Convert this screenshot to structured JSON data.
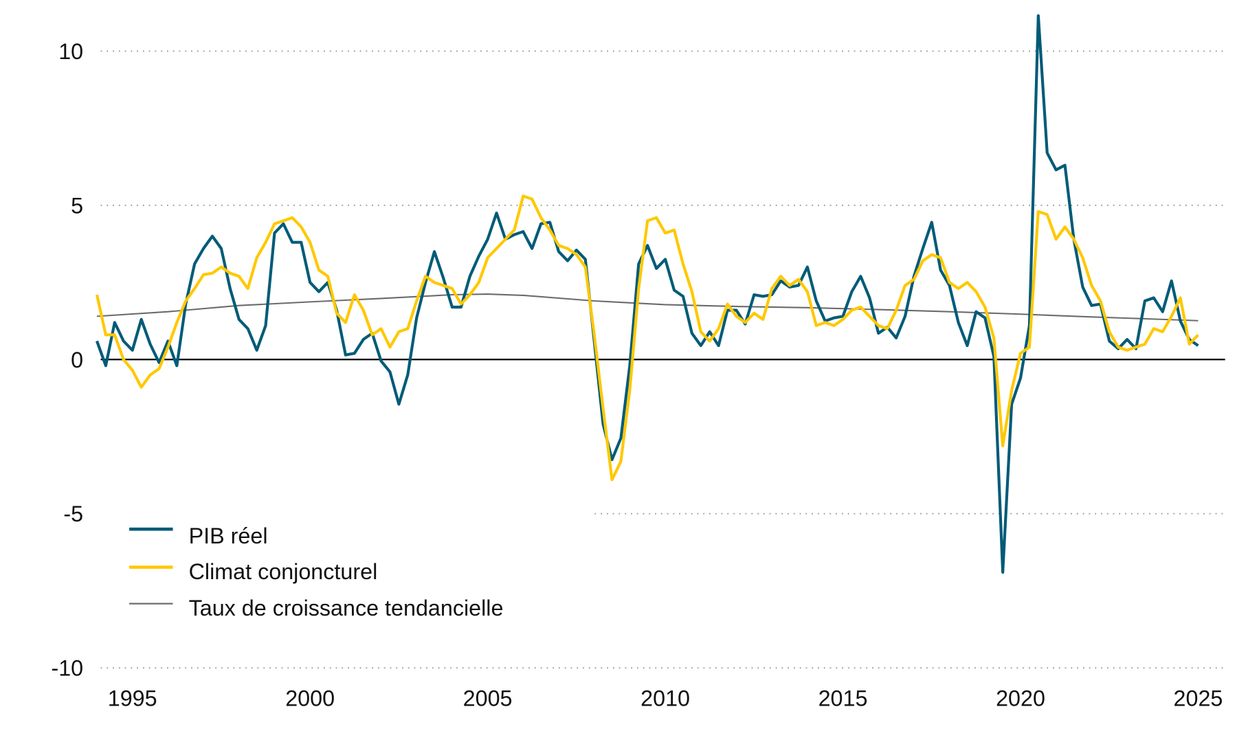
{
  "chart_data": {
    "type": "line",
    "title": "",
    "xlabel": "",
    "ylabel": "",
    "xlim": [
      1994,
      2025.2
    ],
    "ylim": [
      -10,
      11.5
    ],
    "x_ticks": [
      "1995",
      "2000",
      "2005",
      "2010",
      "2015",
      "2020",
      "2025"
    ],
    "y_ticks": [
      "10",
      "5",
      "0",
      "-5",
      "-10"
    ],
    "grid": "horizontal dotted",
    "legend_position": "bottom-left",
    "series": [
      {
        "name": "PIB réel",
        "color": "#005b78",
        "x_start": 1994.0,
        "x_step_years": 0.25,
        "values": [
          0.6,
          -0.2,
          1.2,
          0.6,
          0.3,
          1.3,
          0.5,
          -0.1,
          0.6,
          -0.2,
          1.8,
          3.1,
          3.6,
          4.0,
          3.6,
          2.3,
          1.3,
          1.0,
          0.3,
          1.1,
          4.1,
          4.4,
          3.8,
          3.8,
          2.5,
          2.2,
          2.5,
          1.6,
          0.15,
          0.2,
          0.65,
          0.85,
          -0.05,
          -0.4,
          -1.45,
          -0.5,
          1.35,
          2.5,
          3.5,
          2.65,
          1.7,
          1.7,
          2.7,
          3.35,
          3.9,
          4.75,
          3.9,
          4.05,
          4.15,
          3.6,
          4.4,
          4.45,
          3.5,
          3.2,
          3.55,
          3.25,
          0.6,
          -2.1,
          -3.25,
          -2.55,
          -0.2,
          3.1,
          3.7,
          2.95,
          3.25,
          2.25,
          2.05,
          0.85,
          0.45,
          0.9,
          0.45,
          1.6,
          1.6,
          1.15,
          2.1,
          2.05,
          2.1,
          2.55,
          2.35,
          2.4,
          3.0,
          1.9,
          1.25,
          1.35,
          1.4,
          2.2,
          2.7,
          2.0,
          0.85,
          1.05,
          0.7,
          1.4,
          2.7,
          3.6,
          4.45,
          2.9,
          2.4,
          1.2,
          0.45,
          1.55,
          1.35,
          0.1,
          -6.9,
          -1.45,
          -0.6,
          1.1,
          11.15,
          6.7,
          6.15,
          6.3,
          3.9,
          2.35,
          1.75,
          1.8,
          0.6,
          0.35,
          0.65,
          0.35,
          1.9,
          2.0,
          1.55,
          2.55,
          1.25,
          0.65,
          0.45
        ]
      },
      {
        "name": "Climat conjoncturel",
        "color": "#ffc800",
        "x_start": 1994.0,
        "x_step_years": 0.25,
        "values": [
          2.1,
          0.8,
          0.8,
          0.0,
          -0.35,
          -0.9,
          -0.5,
          -0.3,
          0.4,
          1.2,
          1.9,
          2.3,
          2.75,
          2.8,
          3.0,
          2.8,
          2.7,
          2.3,
          3.3,
          3.8,
          4.4,
          4.5,
          4.6,
          4.3,
          3.8,
          2.9,
          2.7,
          1.5,
          1.2,
          2.1,
          1.6,
          0.8,
          1.0,
          0.4,
          0.9,
          1.0,
          1.9,
          2.7,
          2.5,
          2.4,
          2.3,
          1.8,
          2.1,
          2.5,
          3.3,
          3.6,
          3.9,
          4.2,
          5.3,
          5.2,
          4.6,
          4.2,
          3.7,
          3.6,
          3.4,
          3.0,
          0.8,
          -1.6,
          -3.9,
          -3.3,
          -1.0,
          2.3,
          4.5,
          4.6,
          4.1,
          4.2,
          3.1,
          2.2,
          0.9,
          0.6,
          1.0,
          1.8,
          1.4,
          1.2,
          1.5,
          1.3,
          2.3,
          2.7,
          2.4,
          2.6,
          2.2,
          1.1,
          1.2,
          1.1,
          1.3,
          1.6,
          1.7,
          1.4,
          1.1,
          1.0,
          1.6,
          2.4,
          2.6,
          3.2,
          3.4,
          3.3,
          2.5,
          2.3,
          2.5,
          2.2,
          1.7,
          0.7,
          -2.8,
          -1.0,
          0.2,
          0.4,
          4.8,
          4.7,
          3.9,
          4.3,
          3.9,
          3.3,
          2.4,
          1.9,
          0.9,
          0.4,
          0.3,
          0.4,
          0.5,
          1.0,
          0.9,
          1.4,
          2.0,
          0.5,
          0.8
        ]
      },
      {
        "name": "Taux de croissance tendancielle",
        "color": "#6b6b6b",
        "x": [
          1994,
          1996,
          1998,
          2000,
          2002,
          2004,
          2005,
          2006,
          2008,
          2010,
          2012,
          2014,
          2016,
          2018,
          2020,
          2022,
          2024,
          2025
        ],
        "values": [
          1.4,
          1.55,
          1.75,
          1.87,
          1.98,
          2.1,
          2.12,
          2.08,
          1.9,
          1.78,
          1.72,
          1.68,
          1.62,
          1.55,
          1.47,
          1.38,
          1.3,
          1.26
        ]
      }
    ]
  }
}
